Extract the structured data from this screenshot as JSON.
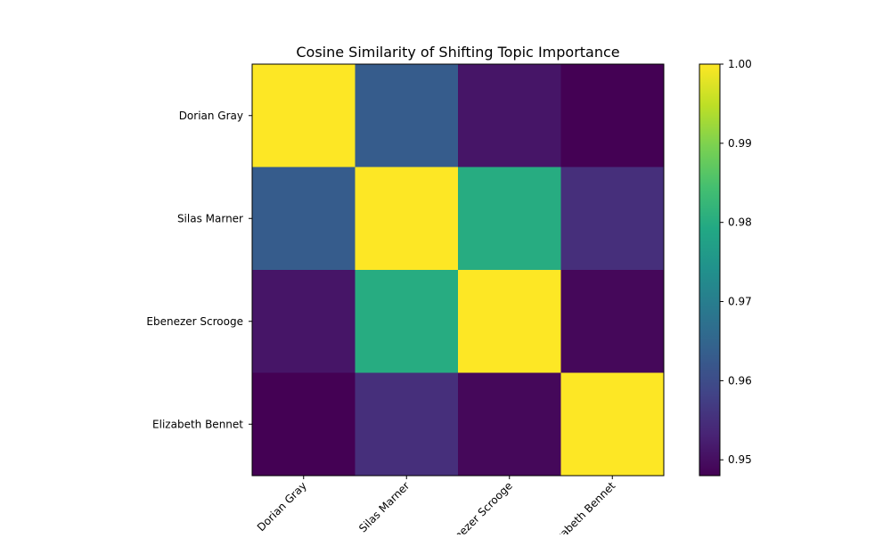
{
  "chart_data": {
    "type": "heatmap",
    "title": "Cosine Similarity of Shifting Topic Importance",
    "xlabel": "",
    "ylabel": "",
    "x_categories": [
      "Dorian Gray",
      "Silas Marner",
      "Ebenezer Scrooge",
      "Elizabeth Bennet"
    ],
    "y_categories": [
      "Dorian Gray",
      "Silas Marner",
      "Ebenezer Scrooge",
      "Elizabeth Bennet"
    ],
    "values": [
      [
        1.0,
        0.963,
        0.951,
        0.948
      ],
      [
        0.963,
        1.0,
        0.98,
        0.955
      ],
      [
        0.951,
        0.98,
        1.0,
        0.949
      ],
      [
        0.948,
        0.955,
        0.949,
        1.0
      ]
    ],
    "colorbar": {
      "range": [
        0.948,
        1.0
      ],
      "ticks": [
        0.95,
        0.96,
        0.97,
        0.98,
        0.99,
        1.0
      ],
      "tick_labels": [
        "0.95",
        "0.96",
        "0.97",
        "0.98",
        "0.99",
        "1.00"
      ]
    },
    "colormap": "viridis",
    "grid": false,
    "x_tick_rotation_deg": 45
  }
}
